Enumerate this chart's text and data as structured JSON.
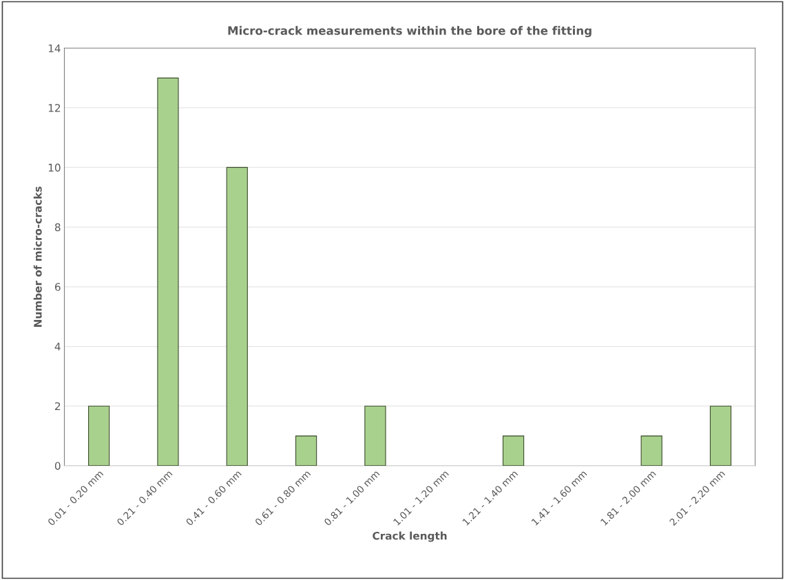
{
  "chart_data": {
    "type": "bar",
    "title": "Micro-crack measurements within the bore of the fitting",
    "xlabel": "Crack length",
    "ylabel": "Number of micro-cracks",
    "categories": [
      "0.01 - 0.20 mm",
      "0.21 - 0.40 mm",
      "0.41 - 0.60 mm",
      "0.61 - 0.80 mm",
      "0.81 - 1.00 mm",
      "1.01 - 1.20 mm",
      "1.21 - 1.40 mm",
      "1.41 - 1.60 mm",
      "1.81 - 2.00 mm",
      "2.01 - 2.20 mm"
    ],
    "values": [
      2,
      13,
      10,
      1,
      2,
      0,
      1,
      0,
      1,
      2
    ],
    "color": "#a9d18e",
    "ylim": [
      0,
      14
    ],
    "yticks": [
      0,
      2,
      4,
      6,
      8,
      10,
      12,
      14
    ],
    "grid": "y",
    "legend": false
  }
}
